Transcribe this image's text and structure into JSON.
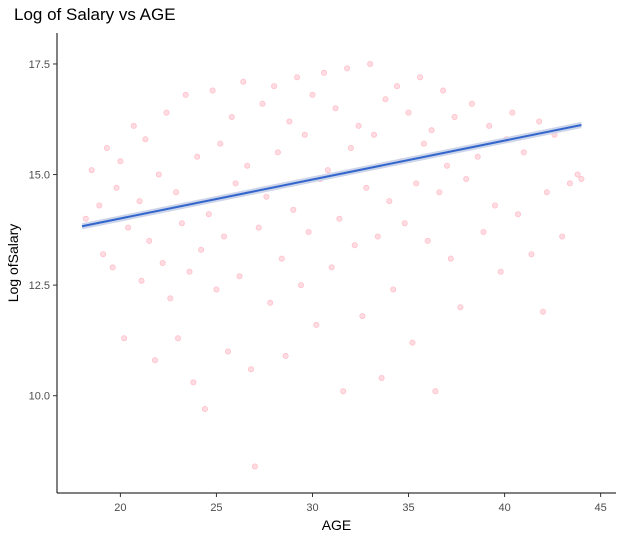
{
  "chart_data": {
    "type": "scatter",
    "title": "Log of Salary vs AGE",
    "xlabel": "AGE",
    "ylabel": "Log ofSalary",
    "xlim": [
      16.7,
      45.8
    ],
    "ylim": [
      7.8,
      18.2
    ],
    "x_ticks": [
      20,
      25,
      30,
      35,
      40,
      45
    ],
    "x_tick_labels": [
      "20",
      "25",
      "30",
      "35",
      "40",
      "45"
    ],
    "y_ticks": [
      10.0,
      12.5,
      15.0,
      17.5
    ],
    "y_tick_labels": [
      "10.0",
      "12.5",
      "15.0",
      "17.5"
    ],
    "grid": false,
    "legend": "none",
    "series": [
      {
        "type": "scatter",
        "color": "#ffc0cb",
        "x_range": [
          18,
          44
        ],
        "y_range": [
          8.5,
          17.5
        ],
        "points": [
          [
            18.2,
            14.0
          ],
          [
            18.5,
            15.1
          ],
          [
            18.9,
            14.3
          ],
          [
            19.1,
            13.2
          ],
          [
            19.3,
            15.6
          ],
          [
            19.6,
            12.9
          ],
          [
            19.8,
            14.7
          ],
          [
            20.0,
            15.3
          ],
          [
            20.2,
            11.3
          ],
          [
            20.4,
            13.8
          ],
          [
            20.7,
            16.1
          ],
          [
            21.0,
            14.4
          ],
          [
            21.1,
            12.6
          ],
          [
            21.3,
            15.8
          ],
          [
            21.5,
            13.5
          ],
          [
            21.8,
            10.8
          ],
          [
            22.0,
            15.0
          ],
          [
            22.2,
            13.0
          ],
          [
            22.4,
            16.4
          ],
          [
            22.6,
            12.2
          ],
          [
            22.9,
            14.6
          ],
          [
            23.0,
            11.3
          ],
          [
            23.2,
            13.9
          ],
          [
            23.4,
            16.8
          ],
          [
            23.6,
            12.8
          ],
          [
            23.8,
            10.3
          ],
          [
            24.0,
            15.4
          ],
          [
            24.2,
            13.3
          ],
          [
            24.4,
            9.7
          ],
          [
            24.6,
            14.1
          ],
          [
            24.8,
            16.9
          ],
          [
            25.0,
            12.4
          ],
          [
            25.2,
            15.7
          ],
          [
            25.4,
            13.6
          ],
          [
            25.6,
            11.0
          ],
          [
            25.8,
            16.3
          ],
          [
            26.0,
            14.8
          ],
          [
            26.2,
            12.7
          ],
          [
            26.4,
            17.1
          ],
          [
            26.6,
            15.2
          ],
          [
            26.8,
            10.6
          ],
          [
            27.0,
            8.4
          ],
          [
            27.2,
            13.8
          ],
          [
            27.4,
            16.6
          ],
          [
            27.6,
            14.5
          ],
          [
            27.8,
            12.1
          ],
          [
            28.0,
            17.0
          ],
          [
            28.2,
            15.5
          ],
          [
            28.4,
            13.1
          ],
          [
            28.6,
            10.9
          ],
          [
            28.8,
            16.2
          ],
          [
            29.0,
            14.2
          ],
          [
            29.2,
            17.2
          ],
          [
            29.4,
            12.5
          ],
          [
            29.6,
            15.9
          ],
          [
            29.8,
            13.7
          ],
          [
            30.0,
            16.8
          ],
          [
            30.2,
            11.6
          ],
          [
            30.4,
            14.9
          ],
          [
            30.6,
            17.3
          ],
          [
            30.8,
            15.1
          ],
          [
            31.0,
            12.9
          ],
          [
            31.2,
            16.5
          ],
          [
            31.4,
            14.0
          ],
          [
            31.6,
            10.1
          ],
          [
            31.8,
            17.4
          ],
          [
            32.0,
            15.6
          ],
          [
            32.2,
            13.4
          ],
          [
            32.4,
            16.1
          ],
          [
            32.6,
            11.8
          ],
          [
            32.8,
            14.7
          ],
          [
            33.0,
            17.5
          ],
          [
            33.2,
            15.9
          ],
          [
            33.4,
            13.6
          ],
          [
            33.6,
            10.4
          ],
          [
            33.8,
            16.7
          ],
          [
            34.0,
            14.4
          ],
          [
            34.2,
            12.4
          ],
          [
            34.4,
            17.0
          ],
          [
            34.6,
            15.3
          ],
          [
            34.8,
            13.9
          ],
          [
            35.0,
            16.4
          ],
          [
            35.2,
            11.2
          ],
          [
            35.4,
            14.8
          ],
          [
            35.6,
            17.2
          ],
          [
            35.8,
            15.7
          ],
          [
            36.0,
            13.5
          ],
          [
            36.2,
            16.0
          ],
          [
            36.4,
            10.1
          ],
          [
            36.6,
            14.6
          ],
          [
            36.8,
            16.9
          ],
          [
            37.0,
            15.2
          ],
          [
            37.2,
            13.1
          ],
          [
            37.4,
            16.3
          ],
          [
            37.7,
            12.0
          ],
          [
            38.0,
            14.9
          ],
          [
            38.3,
            16.6
          ],
          [
            38.6,
            15.4
          ],
          [
            38.9,
            13.7
          ],
          [
            39.2,
            16.1
          ],
          [
            39.5,
            14.3
          ],
          [
            39.8,
            12.8
          ],
          [
            40.1,
            15.8
          ],
          [
            40.4,
            16.4
          ],
          [
            40.7,
            14.1
          ],
          [
            41.0,
            15.5
          ],
          [
            41.4,
            13.2
          ],
          [
            41.8,
            16.2
          ],
          [
            42.2,
            14.6
          ],
          [
            42.6,
            15.9
          ],
          [
            43.0,
            13.6
          ],
          [
            43.4,
            14.8
          ],
          [
            43.8,
            15.0
          ],
          [
            44.0,
            14.9
          ],
          [
            42.0,
            11.9
          ]
        ]
      },
      {
        "type": "line",
        "kind": "linear fit with confidence band",
        "color": "#3366cc",
        "band_color": "#c8d0e8",
        "x": [
          18,
          44
        ],
        "y": [
          13.83,
          16.12
        ]
      }
    ]
  }
}
